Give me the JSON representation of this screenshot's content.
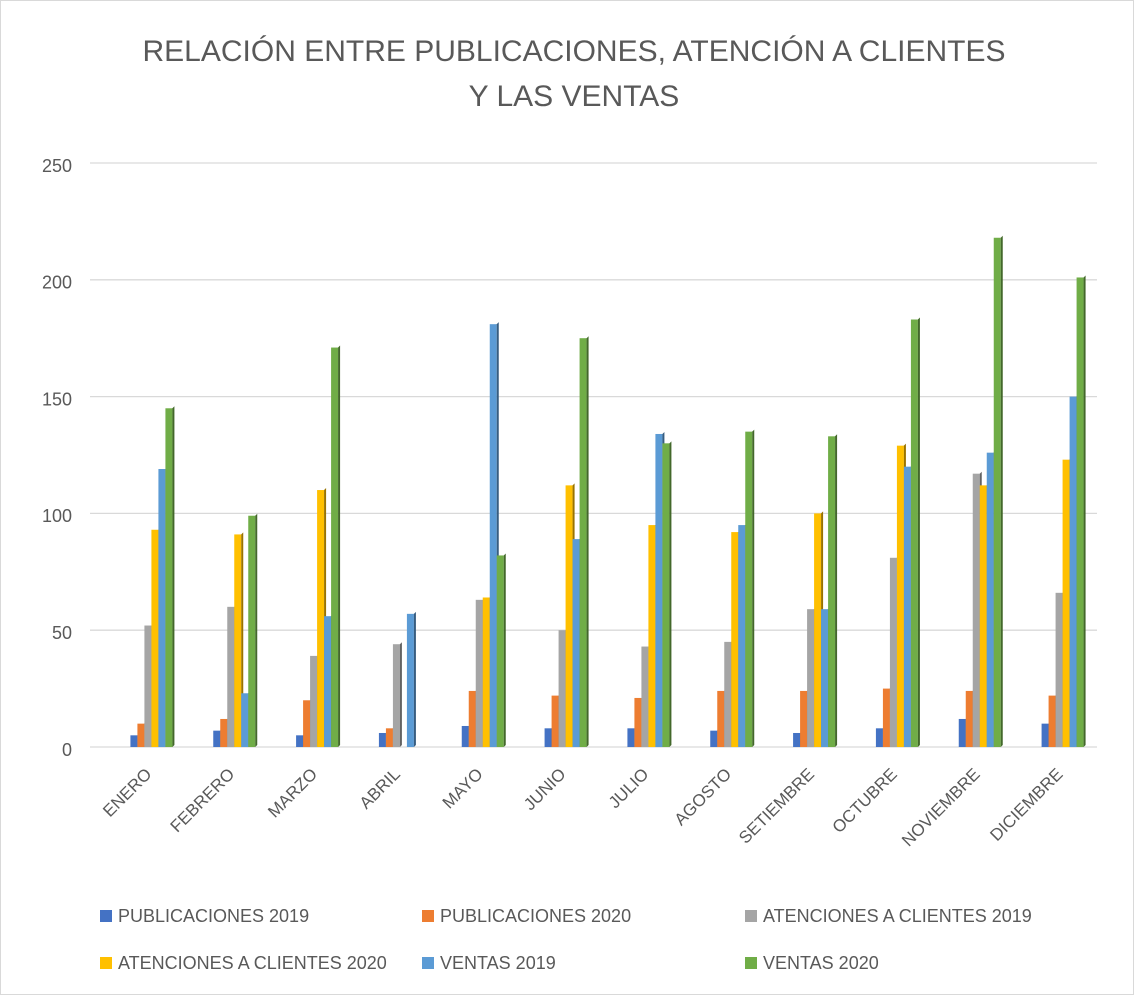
{
  "chart_data": {
    "type": "bar",
    "title": [
      "RELACIÓN ENTRE PUBLICACIONES, ATENCIÓN A CLIENTES",
      "Y LAS VENTAS"
    ],
    "categories": [
      "ENERO",
      "FEBRERO",
      "MARZO",
      "ABRIL",
      "MAYO",
      "JUNIO",
      "JULIO",
      "AGOSTO",
      "SETIEMBRE",
      "OCTUBRE",
      "NOVIEMBRE",
      "DICIEMBRE"
    ],
    "series": [
      {
        "name": "PUBLICACIONES 2019",
        "color": "#4472c4",
        "values": [
          5,
          7,
          5,
          6,
          9,
          8,
          8,
          7,
          6,
          8,
          12,
          10
        ]
      },
      {
        "name": "PUBLICACIONES 2020",
        "color": "#ed7d31",
        "values": [
          10,
          12,
          20,
          8,
          24,
          22,
          21,
          24,
          24,
          25,
          24,
          22
        ]
      },
      {
        "name": "ATENCIONES A CLIENTES 2019",
        "color": "#a5a5a5",
        "values": [
          52,
          60,
          39,
          44,
          63,
          50,
          43,
          45,
          59,
          81,
          117,
          66
        ]
      },
      {
        "name": "ATENCIONES A CLIENTES 2020",
        "color": "#ffc000",
        "values": [
          93,
          91,
          110,
          0,
          64,
          112,
          95,
          92,
          100,
          129,
          112,
          123
        ]
      },
      {
        "name": "VENTAS 2019",
        "color": "#5b9bd5",
        "values": [
          119,
          23,
          56,
          57,
          181,
          89,
          134,
          95,
          59,
          120,
          126,
          150
        ]
      },
      {
        "name": "VENTAS 2020",
        "color": "#70ad47",
        "values": [
          145,
          99,
          171,
          0,
          82,
          175,
          130,
          135,
          133,
          183,
          218,
          201
        ]
      }
    ],
    "ylim": [
      0,
      250
    ],
    "yticks": [
      0,
      50,
      100,
      150,
      200,
      250
    ],
    "grid": true,
    "legend": "bottom"
  }
}
